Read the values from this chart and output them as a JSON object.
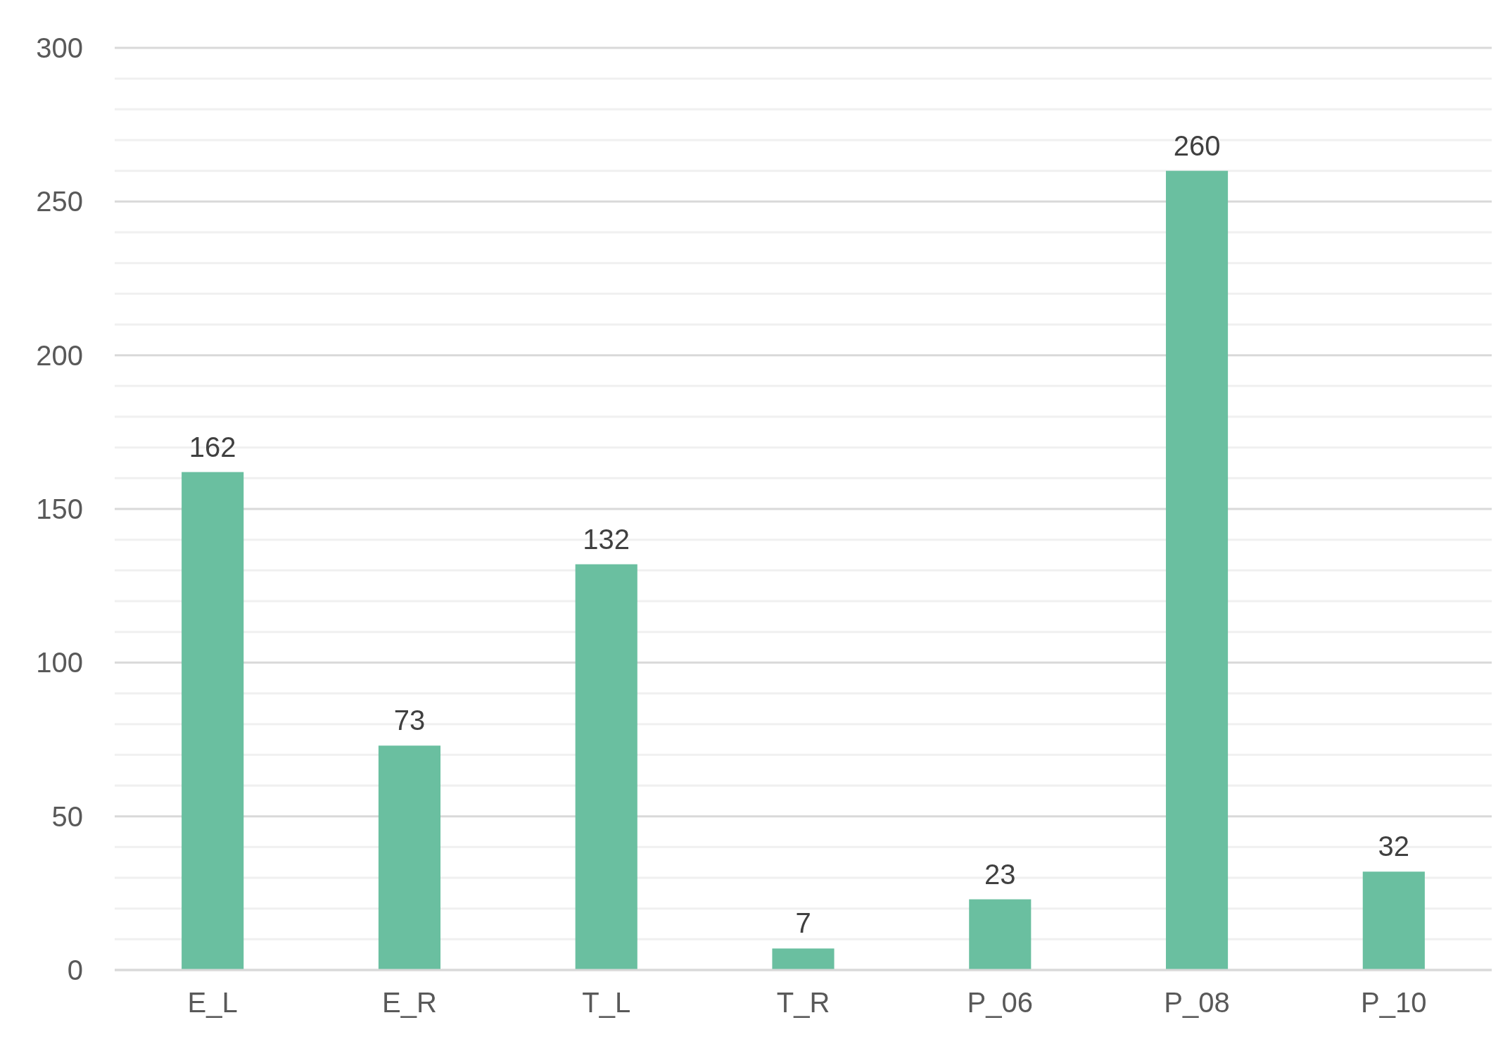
{
  "chart_data": {
    "type": "bar",
    "categories": [
      "E_L",
      "E_R",
      "T_L",
      "T_R",
      "P_06",
      "P_08",
      "P_10"
    ],
    "values": [
      162,
      73,
      132,
      7,
      23,
      260,
      32
    ],
    "color": "#6abfa0",
    "ylim": [
      0,
      300
    ],
    "yticks": [
      0,
      {
        "value": 10,
        "label": null
      },
      {
        "value": 20,
        "label": null
      },
      {
        "value": 30,
        "label": null
      },
      {
        "value": 40,
        "label": null
      },
      50,
      {
        "value": 60,
        "label": null
      },
      {
        "value": 70,
        "label": null
      },
      {
        "value": 80,
        "label": null
      },
      {
        "value": 90,
        "label": null
      },
      100,
      {
        "value": 110,
        "label": null
      },
      {
        "value": 120,
        "label": null
      },
      {
        "value": 130,
        "label": null
      },
      {
        "value": 140,
        "label": null
      },
      150,
      {
        "value": 160,
        "label": null
      },
      {
        "value": 170,
        "label": null
      },
      {
        "value": 180,
        "label": null
      },
      {
        "value": 190,
        "label": null
      },
      200,
      {
        "value": 210,
        "label": null
      },
      {
        "value": 220,
        "label": null
      },
      {
        "value": 230,
        "label": null
      },
      {
        "value": 240,
        "label": null
      },
      250,
      {
        "value": 260,
        "label": null
      },
      {
        "value": 270,
        "label": null
      },
      {
        "value": 280,
        "label": null
      },
      {
        "value": 290,
        "label": null
      },
      300
    ],
    "grid": "y",
    "data_labels": true
  }
}
